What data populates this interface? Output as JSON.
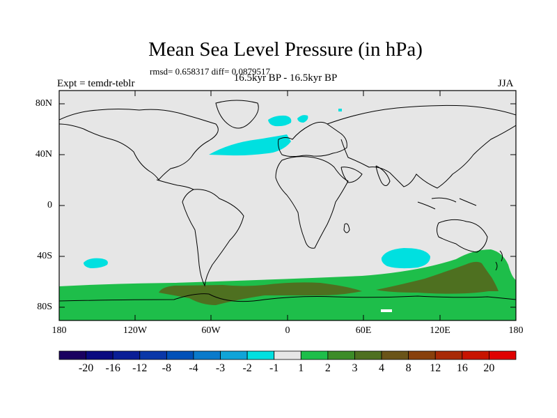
{
  "title": "Mean Sea Level Pressure (in hPa)",
  "stats": "rmsd= 0.658317 diff= 0.0879517",
  "experiment": "Expt = temdr-teblr",
  "period": "16.5kyr BP - 16.5kyr BP",
  "season": "JJA",
  "map": {
    "projection": "cylindrical-equidistant",
    "lon_range": [
      -180,
      180
    ],
    "lat_range": [
      -90,
      90
    ],
    "x_ticks": [
      "180",
      "120W",
      "60W",
      "0",
      "60E",
      "120E",
      "180"
    ],
    "y_ticks": [
      "80N",
      "40N",
      "0",
      "40S",
      "80S"
    ],
    "background_color": "#e6e6e6",
    "coastline_color": "#000000",
    "anomaly_regions": [
      {
        "name": "north-atlantic-negative",
        "bin": "-2 to -1",
        "color": "#00e0e0"
      },
      {
        "name": "nordic-seas-negative",
        "bin": "-2 to -1",
        "color": "#00e0e0"
      },
      {
        "name": "south-indian-ocean-negative",
        "bin": "-2 to -1",
        "color": "#00e0e0"
      },
      {
        "name": "south-pacific-negative",
        "bin": "-2 to -1",
        "color": "#00e0e0"
      },
      {
        "name": "southern-ocean-positive",
        "bin": "1 to 2",
        "color": "#1ebe4a"
      },
      {
        "name": "antarctic-positive",
        "bin": "3 to 4",
        "color": "#4e7020"
      }
    ]
  },
  "colorbar": {
    "labels": [
      "-20",
      "-16",
      "-12",
      "-8",
      "-4",
      "-3",
      "-2",
      "-1",
      "1",
      "2",
      "3",
      "4",
      "8",
      "12",
      "16",
      "20"
    ],
    "colors": [
      "#1a0060",
      "#0a0a80",
      "#0a1e96",
      "#0a37a8",
      "#0050b8",
      "#0a7acb",
      "#10a4d8",
      "#00e0e0",
      "#e6e6e6",
      "#1ebe4a",
      "#3c8c28",
      "#4e7020",
      "#6a5418",
      "#88400c",
      "#a82a06",
      "#c81400",
      "#e00000"
    ]
  }
}
